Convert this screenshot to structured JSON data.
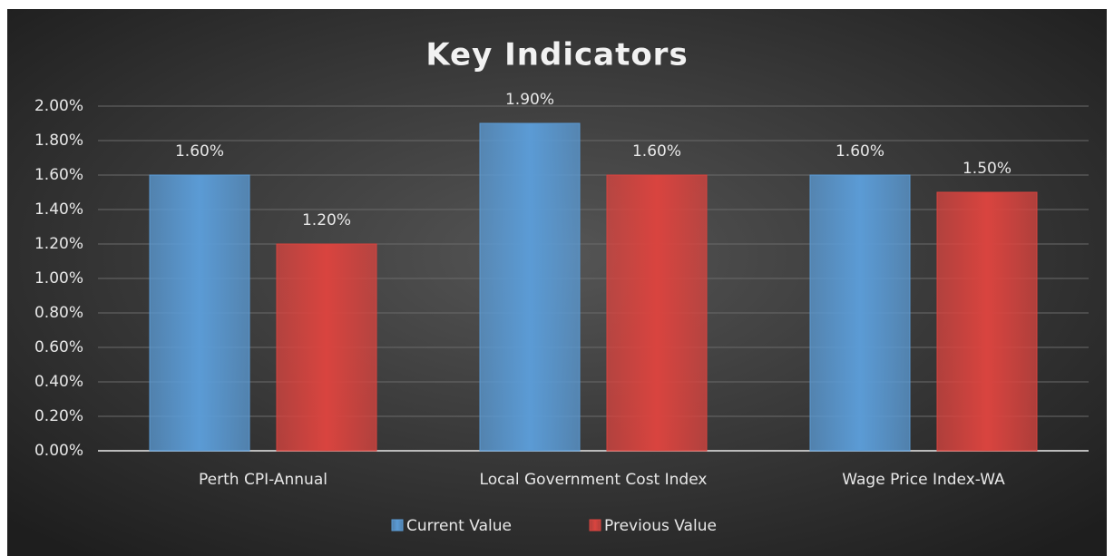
{
  "chart_data": {
    "type": "bar",
    "title": "Key Indicators",
    "categories": [
      "Perth CPI-Annual",
      "Local Government Cost Index",
      "Wage Price Index-WA"
    ],
    "series": [
      {
        "name": "Current Value",
        "color": "#5b9bd5",
        "values": [
          1.6,
          1.9,
          1.6
        ],
        "value_labels": [
          "1.60%",
          "1.90%",
          "1.60%"
        ]
      },
      {
        "name": "Previous Value",
        "color": "#d9443f",
        "values": [
          1.2,
          1.6,
          1.5
        ],
        "value_labels": [
          "1.20%",
          "1.60%",
          "1.50%"
        ]
      }
    ],
    "ylim": [
      0,
      2
    ],
    "yticks": [
      {
        "value": 0,
        "label": "0.00%"
      },
      {
        "value": 0.2,
        "label": "0.20%"
      },
      {
        "value": 0.4,
        "label": "0.40%"
      },
      {
        "value": 0.6,
        "label": "0.60%"
      },
      {
        "value": 0.8,
        "label": "0.80%"
      },
      {
        "value": 1,
        "label": "1.00%"
      },
      {
        "value": 1.2,
        "label": "1.20%"
      },
      {
        "value": 1.4,
        "label": "1.40%"
      },
      {
        "value": 1.6,
        "label": "1.60%"
      },
      {
        "value": 1.8,
        "label": "1.80%"
      },
      {
        "value": 2,
        "label": "2.00%"
      }
    ],
    "grid": true,
    "legend": "bottom"
  }
}
